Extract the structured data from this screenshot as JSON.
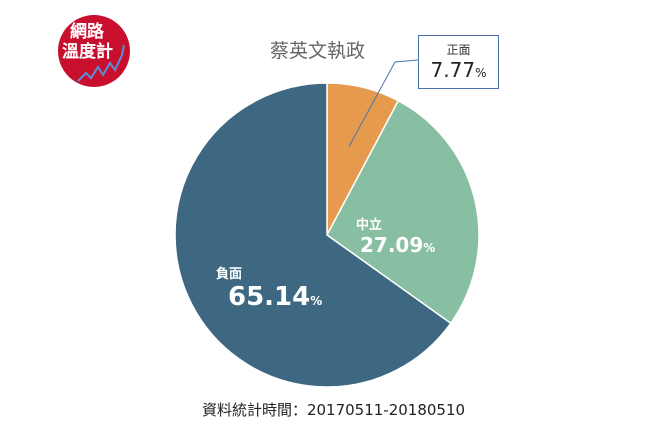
{
  "logo": {
    "line1": "網路",
    "line2": "溫度計"
  },
  "chart_data": {
    "type": "pie",
    "title": "蔡英文執政",
    "slices": [
      {
        "name": "正面",
        "value": 7.77,
        "label": "7.77",
        "unit": "%",
        "color": "#E59A4E"
      },
      {
        "name": "中立",
        "value": 27.09,
        "label": "27.09",
        "unit": "%",
        "color": "#88BFA2"
      },
      {
        "name": "負面",
        "value": 65.14,
        "label": "65.14",
        "unit": "%",
        "color": "#3E6882"
      }
    ],
    "start": "top",
    "direction": "clockwise"
  },
  "footer": "資料統計時間：20170511-20180510"
}
